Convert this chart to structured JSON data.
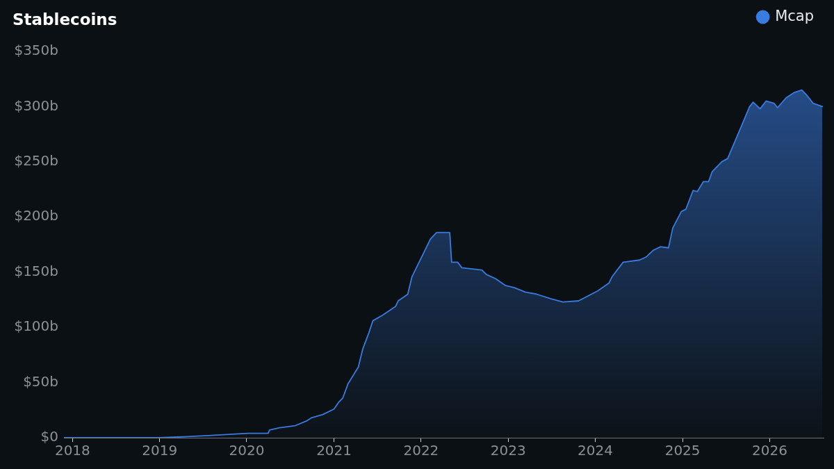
{
  "chart_data": {
    "type": "area",
    "title": "Stablecoins",
    "x": [
      "2017-11-26",
      "2018-06-01",
      "2019-01-01",
      "2019-04-26",
      "2019-07-24",
      "2020-01-08",
      "2020-03-31",
      "2020-04-06",
      "2020-05-18",
      "2020-07-23",
      "2020-09-06",
      "2020-09-28",
      "2020-11-15",
      "2021-01-01",
      "2021-01-20",
      "2021-02-07",
      "2021-03-01",
      "2021-04-13",
      "2021-05-01",
      "2021-05-27",
      "2021-06-13",
      "2021-07-23",
      "2021-09-16",
      "2021-09-27",
      "2021-11-06",
      "2021-11-24",
      "2022-01-04",
      "2022-02-09",
      "2022-03-07",
      "2022-05-01",
      "2022-05-09",
      "2022-06-03",
      "2022-06-21",
      "2022-09-13",
      "2022-10-01",
      "2022-11-10",
      "2022-12-20",
      "2023-01-26",
      "2023-03-14",
      "2023-05-01",
      "2023-06-28",
      "2023-08-18",
      "2023-10-23",
      "2024-01-11",
      "2024-02-27",
      "2024-03-12",
      "2024-04-27",
      "2024-07-05",
      "2024-08-03",
      "2024-09-01",
      "2024-10-01",
      "2024-11-03",
      "2024-11-21",
      "2024-12-27",
      "2025-01-15",
      "2025-02-14",
      "2025-03-04",
      "2025-03-29",
      "2025-04-20",
      "2025-05-05",
      "2025-06-14",
      "2025-07-09",
      "2025-09-06",
      "2025-10-09",
      "2025-10-24",
      "2025-11-22",
      "2025-12-17",
      "2026-01-19",
      "2026-02-03",
      "2026-03-11",
      "2026-04-16",
      "2026-05-16",
      "2026-06-07",
      "2026-07-02",
      "2026-08-10"
    ],
    "series": [
      {
        "name": "Mcap",
        "color": "#3a7be0",
        "values": [
          0,
          0,
          0,
          1,
          2,
          4,
          4,
          7,
          9,
          11,
          15,
          18,
          21,
          26,
          32,
          36,
          49,
          64,
          80,
          95,
          106,
          111,
          119,
          124,
          130,
          146,
          164,
          180,
          186,
          186,
          159,
          159,
          154,
          152,
          148,
          144,
          138,
          136,
          132,
          130,
          126,
          123,
          124,
          133,
          140,
          146,
          159,
          161,
          164,
          170,
          173,
          172,
          190,
          205,
          207,
          224,
          223,
          232,
          232,
          241,
          250,
          253,
          283,
          300,
          304,
          298,
          305,
          303,
          299,
          308,
          313,
          315,
          310,
          303,
          300
        ]
      }
    ],
    "xlim": [
      "2017-11-26",
      "2026-08-15"
    ],
    "xticks": [
      "2018",
      "2019",
      "2020",
      "2021",
      "2022",
      "2023",
      "2024",
      "2025",
      "2026"
    ],
    "ylim": [
      0,
      350
    ],
    "yticks": [
      {
        "value": 0,
        "label": "$0"
      },
      {
        "value": 50,
        "label": "$50b"
      },
      {
        "value": 100,
        "label": "$100b"
      },
      {
        "value": 150,
        "label": "$150b"
      },
      {
        "value": 200,
        "label": "$200b"
      },
      {
        "value": 250,
        "label": "$250b"
      },
      {
        "value": 300,
        "label": "$300b"
      },
      {
        "value": 350,
        "label": "$350b"
      }
    ],
    "legend": "top right"
  }
}
